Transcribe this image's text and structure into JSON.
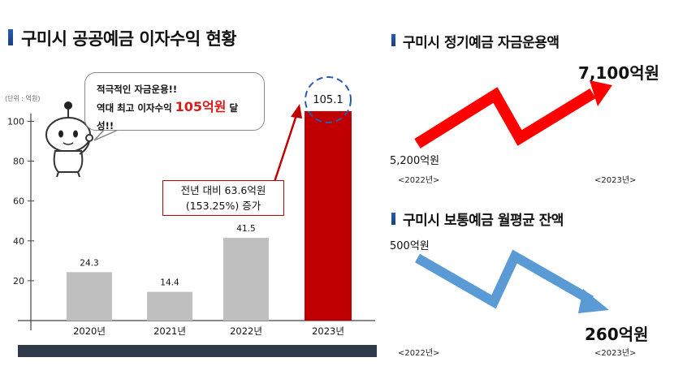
{
  "main_title": "구미시 공공예금 이자수익 현황",
  "unit_label": "(단위 : 억원)",
  "callout": {
    "line1": "적극적인 자금운용!!",
    "line2_prefix": "역대 최고 이자수익 ",
    "line2_highlight": "105억원",
    "line2_suffix": " 달성!!"
  },
  "increase_note": {
    "line1": "전년 대비 63.6억원",
    "line2": "(153.25%) 증가"
  },
  "chart_data": [
    {
      "type": "bar",
      "title": "구미시 공공예금 이자수익 현황",
      "categories": [
        "2020년",
        "2021년",
        "2022년",
        "2023년"
      ],
      "values": [
        24.3,
        14.4,
        41.5,
        105.1
      ],
      "value_labels": [
        "24.3",
        "14.4",
        "41.5",
        "105.1"
      ],
      "ylabel": "(단위 : 억원)",
      "ylim": [
        0,
        112
      ],
      "yticks": [
        20,
        40,
        60,
        80,
        100
      ],
      "colors": [
        "#bfbfbf",
        "#bfbfbf",
        "#bfbfbf",
        "#c00000"
      ],
      "grid": false
    },
    {
      "type": "line",
      "title": "구미시 정기예금 자금운용액",
      "categories": [
        "2022년",
        "2023년"
      ],
      "values": [
        5200,
        7100
      ],
      "value_labels": [
        "5,200억원",
        "7,100억원"
      ],
      "tick_labels": [
        "<2022년>",
        "<2023년>"
      ],
      "color": "#ff0000"
    },
    {
      "type": "line",
      "title": "구미시 보통예금 월평균 잔액",
      "categories": [
        "2022년",
        "2023년"
      ],
      "values": [
        500,
        260
      ],
      "value_labels": [
        "500억원",
        "260억원"
      ],
      "tick_labels": [
        "<2022년>",
        "<2023년>"
      ],
      "color": "#5b9bd5"
    }
  ]
}
